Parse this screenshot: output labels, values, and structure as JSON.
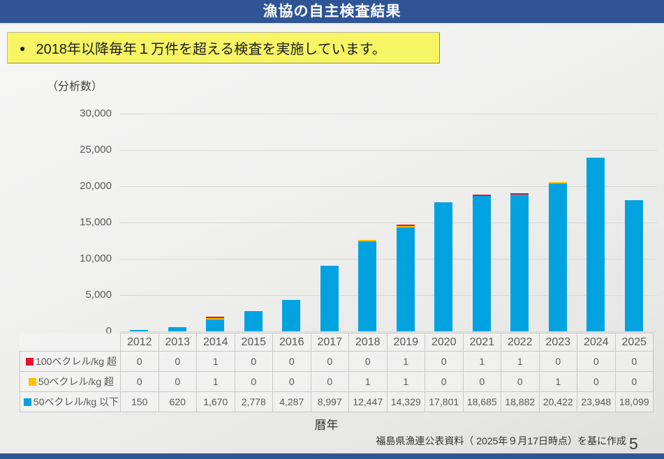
{
  "banner": {
    "title": "漁協の自主検査結果"
  },
  "callout": {
    "bullet": "●",
    "text": "2018年以降毎年１万件を超える検査を実施しています。"
  },
  "colors": {
    "banner_blue": "#2f5597",
    "callout_yellow": "#f7f564",
    "bar_blue": "#00a3e0",
    "cap_red": "#e8112d",
    "cap_yellow": "#ffc000",
    "grid_gray": "#d8d8d6"
  },
  "chart_data": {
    "type": "bar",
    "stacked": true,
    "y_axis_title": "（分析数）",
    "xlabel": "暦年",
    "ylim": [
      0,
      30000
    ],
    "ytick_interval": 5000,
    "yticks": [
      "30,000",
      "25,000",
      "20,000",
      "15,000",
      "10,000",
      "5,000",
      "0"
    ],
    "grid": true,
    "legend_position": "table-row-labels",
    "categories": [
      "2012",
      "2013",
      "2014",
      "2015",
      "2016",
      "2017",
      "2018",
      "2019",
      "2020",
      "2021",
      "2022",
      "2023",
      "2024",
      "2025"
    ],
    "series": [
      {
        "key": "over-100",
        "name": "100ベクレル/kg 超",
        "color": "#e8112d",
        "values": [
          0,
          0,
          1,
          0,
          0,
          0,
          0,
          1,
          0,
          1,
          1,
          0,
          0,
          0
        ]
      },
      {
        "key": "over-50",
        "name": "50ベクレル/kg 超",
        "color": "#ffc000",
        "values": [
          0,
          0,
          1,
          0,
          0,
          0,
          1,
          1,
          0,
          0,
          0,
          1,
          0,
          0
        ]
      },
      {
        "key": "under-50",
        "name": "50ベクレル/kg 以下",
        "color": "#00a3e0",
        "values": [
          150,
          620,
          1670,
          2778,
          4287,
          8997,
          12447,
          14329,
          17801,
          18685,
          18882,
          20422,
          23948,
          18099
        ]
      }
    ]
  },
  "footer": {
    "source": "福島県漁連公表資料（ 2025年９月17日時点）を基に作成",
    "page": "5"
  }
}
